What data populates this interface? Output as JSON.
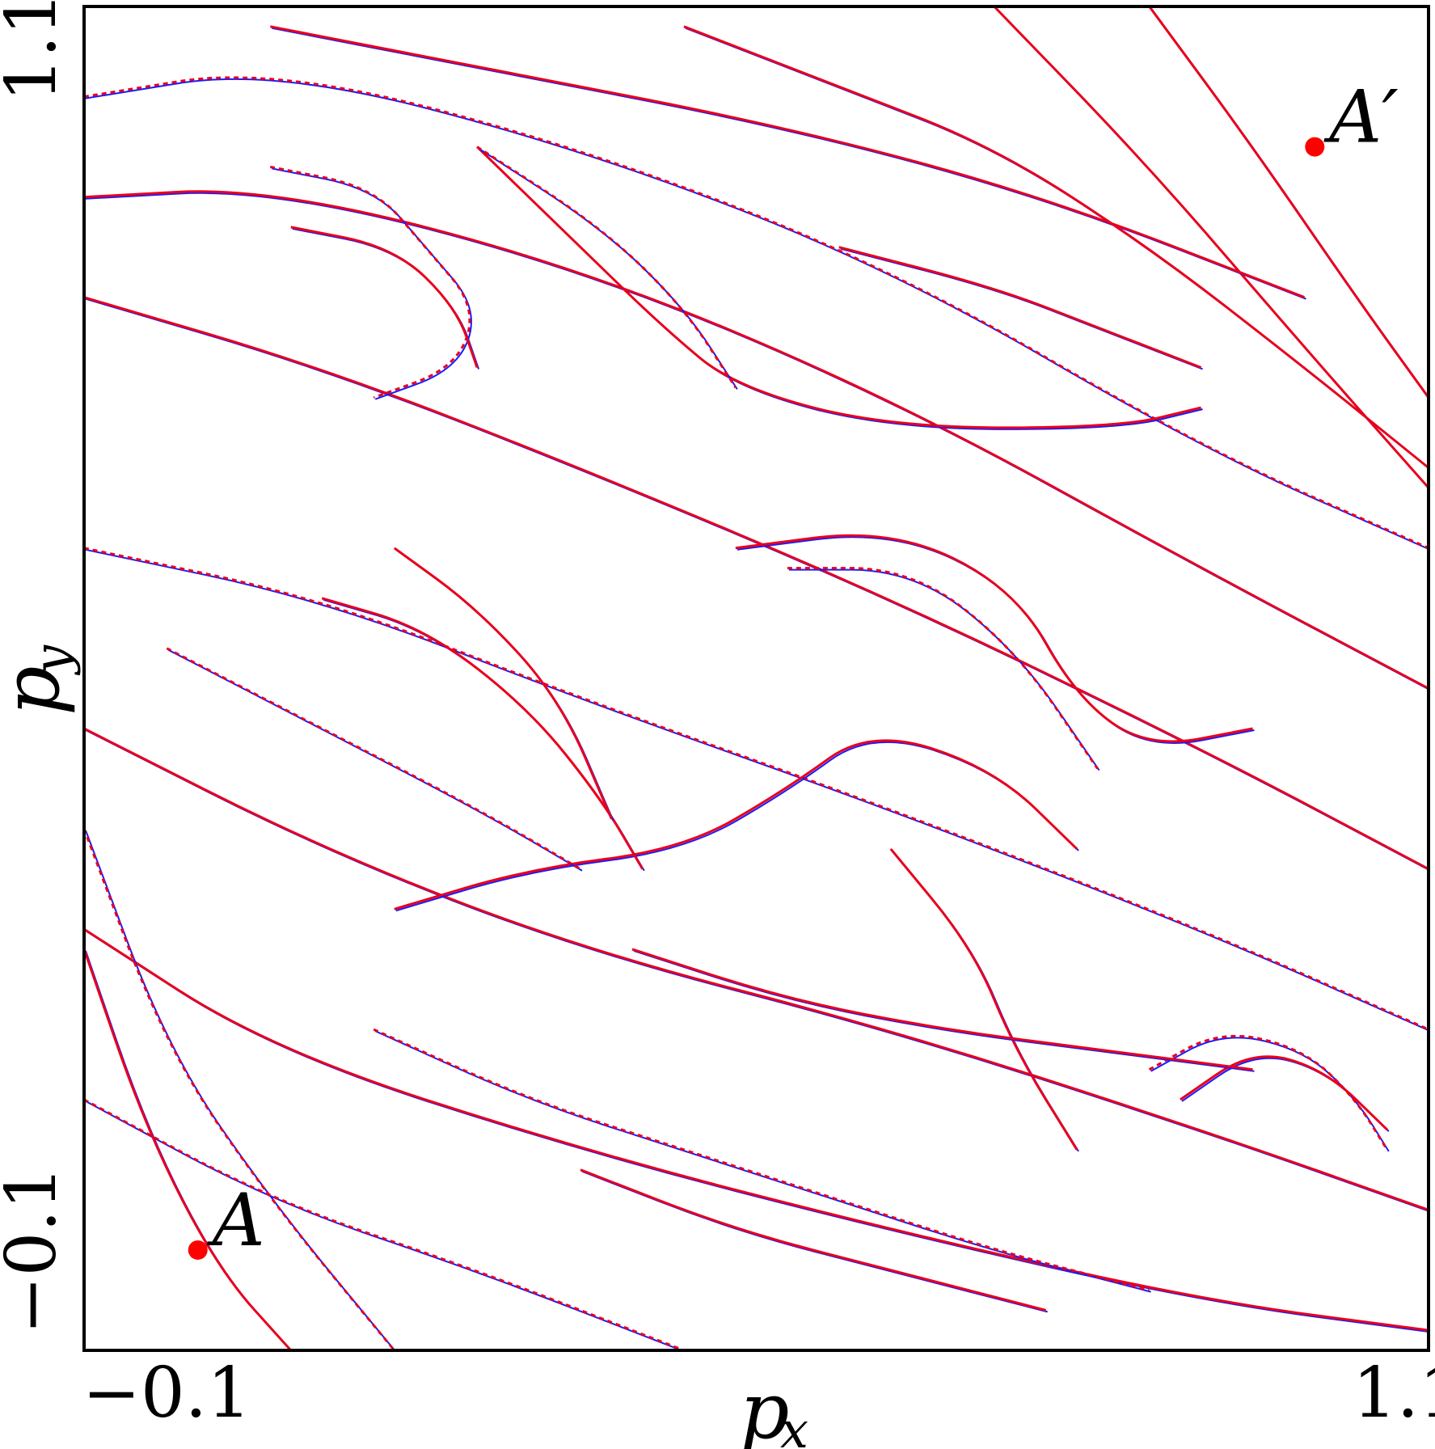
{
  "chart_data": {
    "type": "scatter",
    "title": "",
    "xlabel": {
      "main": "p",
      "sub": "x"
    },
    "ylabel": {
      "main": "p",
      "sub": "y"
    },
    "xlim": [
      -0.18,
      1.12
    ],
    "ylim": [
      -0.2,
      1.14
    ],
    "xticks": [
      {
        "value": -0.1,
        "label": "−0.1"
      },
      {
        "value": 1.1,
        "label": "1.1"
      }
    ],
    "yticks": [
      {
        "value": -0.1,
        "label": "−0.1"
      },
      {
        "value": 1.1,
        "label": "1.1"
      }
    ],
    "grid": false,
    "legend": false,
    "colors": {
      "manifold_primary": "#e8001c",
      "manifold_secondary": "#1a1aff",
      "accent": "#f5a623",
      "point": "#ff0000"
    },
    "marked_points": [
      {
        "name": "A",
        "x": -0.07,
        "y": -0.1
      },
      {
        "name": "A′",
        "x": 1.01,
        "y": 1.0
      }
    ],
    "manifold_curves": [
      [
        [
          -0.18,
          1.05
        ],
        [
          0.0,
          1.08
        ],
        [
          0.3,
          1.0
        ],
        [
          0.6,
          0.88
        ],
        [
          0.9,
          0.7
        ],
        [
          1.12,
          0.6
        ]
      ],
      [
        [
          -0.18,
          0.95
        ],
        [
          0.0,
          0.96
        ],
        [
          0.3,
          0.88
        ],
        [
          0.6,
          0.75
        ],
        [
          0.9,
          0.58
        ],
        [
          1.12,
          0.46
        ]
      ],
      [
        [
          -0.18,
          0.85
        ],
        [
          0.05,
          0.78
        ],
        [
          0.3,
          0.68
        ],
        [
          0.6,
          0.55
        ],
        [
          0.9,
          0.4
        ],
        [
          1.12,
          0.28
        ]
      ],
      [
        [
          -0.18,
          0.6
        ],
        [
          0.05,
          0.55
        ],
        [
          0.3,
          0.45
        ],
        [
          0.6,
          0.34
        ],
        [
          0.9,
          0.22
        ],
        [
          1.12,
          0.12
        ]
      ],
      [
        [
          -0.18,
          0.42
        ],
        [
          0.05,
          0.3
        ],
        [
          0.3,
          0.2
        ],
        [
          0.6,
          0.12
        ],
        [
          0.9,
          0.02
        ],
        [
          1.12,
          -0.06
        ]
      ],
      [
        [
          -0.18,
          0.22
        ],
        [
          0.0,
          0.1
        ],
        [
          0.3,
          0.0
        ],
        [
          0.6,
          -0.08
        ],
        [
          0.9,
          -0.15
        ],
        [
          1.12,
          -0.18
        ]
      ],
      [
        [
          -0.18,
          0.05
        ],
        [
          0.0,
          -0.05
        ],
        [
          0.2,
          -0.12
        ],
        [
          0.4,
          -0.2
        ]
      ],
      [
        [
          0.85,
          1.14
        ],
        [
          0.95,
          1.0
        ],
        [
          1.05,
          0.85
        ],
        [
          1.12,
          0.75
        ]
      ],
      [
        [
          0.7,
          1.14
        ],
        [
          0.85,
          0.98
        ],
        [
          1.0,
          0.8
        ],
        [
          1.12,
          0.66
        ]
      ],
      [
        [
          -0.18,
          0.32
        ],
        [
          -0.1,
          0.1
        ],
        [
          0.0,
          -0.05
        ],
        [
          0.12,
          -0.2
        ]
      ],
      [
        [
          -0.18,
          0.2
        ],
        [
          -0.12,
          0.02
        ],
        [
          -0.05,
          -0.12
        ],
        [
          0.02,
          -0.2
        ]
      ],
      [
        [
          0.2,
          1.0
        ],
        [
          0.3,
          0.9
        ],
        [
          0.38,
          0.82
        ],
        [
          0.45,
          0.76
        ],
        [
          0.6,
          0.72
        ],
        [
          0.82,
          0.72
        ],
        [
          0.9,
          0.74
        ]
      ],
      [
        [
          0.2,
          1.0
        ],
        [
          0.32,
          0.92
        ],
        [
          0.4,
          0.84
        ],
        [
          0.45,
          0.76
        ]
      ],
      [
        [
          0.12,
          0.24
        ],
        [
          0.25,
          0.28
        ],
        [
          0.4,
          0.3
        ],
        [
          0.5,
          0.36
        ],
        [
          0.58,
          0.42
        ],
        [
          0.7,
          0.38
        ],
        [
          0.78,
          0.3
        ]
      ],
      [
        [
          0.78,
          0.0
        ],
        [
          0.72,
          0.1
        ],
        [
          0.68,
          0.2
        ],
        [
          0.6,
          0.3
        ]
      ],
      [
        [
          0.0,
          0.98
        ],
        [
          0.1,
          0.96
        ],
        [
          0.15,
          0.9
        ],
        [
          0.2,
          0.84
        ],
        [
          0.18,
          0.78
        ],
        [
          0.1,
          0.75
        ]
      ],
      [
        [
          0.02,
          0.92
        ],
        [
          0.12,
          0.9
        ],
        [
          0.18,
          0.84
        ],
        [
          0.2,
          0.78
        ]
      ],
      [
        [
          0.45,
          0.6
        ],
        [
          0.6,
          0.62
        ],
        [
          0.72,
          0.56
        ],
        [
          0.78,
          0.45
        ],
        [
          0.85,
          0.4
        ],
        [
          0.95,
          0.42
        ]
      ],
      [
        [
          0.5,
          0.58
        ],
        [
          0.62,
          0.58
        ],
        [
          0.72,
          0.5
        ],
        [
          0.8,
          0.38
        ]
      ],
      [
        [
          0.05,
          0.55
        ],
        [
          0.15,
          0.52
        ],
        [
          0.25,
          0.44
        ],
        [
          0.32,
          0.35
        ],
        [
          0.36,
          0.28
        ]
      ],
      [
        [
          0.12,
          0.6
        ],
        [
          0.2,
          0.54
        ],
        [
          0.28,
          0.45
        ],
        [
          0.33,
          0.33
        ]
      ],
      [
        [
          0.85,
          0.08
        ],
        [
          0.92,
          0.12
        ],
        [
          1.0,
          0.1
        ],
        [
          1.05,
          0.05
        ],
        [
          1.08,
          0.0
        ]
      ],
      [
        [
          0.88,
          0.05
        ],
        [
          0.95,
          0.1
        ],
        [
          1.02,
          0.08
        ],
        [
          1.08,
          0.02
        ]
      ],
      [
        [
          0.35,
          0.2
        ],
        [
          0.5,
          0.15
        ],
        [
          0.65,
          0.12
        ],
        [
          0.8,
          0.1
        ],
        [
          0.95,
          0.08
        ]
      ],
      [
        [
          0.1,
          0.12
        ],
        [
          0.25,
          0.05
        ],
        [
          0.4,
          0.0
        ],
        [
          0.55,
          -0.05
        ],
        [
          0.7,
          -0.1
        ],
        [
          0.85,
          -0.14
        ]
      ],
      [
        [
          0.0,
          1.12
        ],
        [
          0.2,
          1.08
        ],
        [
          0.5,
          1.02
        ],
        [
          0.75,
          0.95
        ],
        [
          1.0,
          0.85
        ]
      ],
      [
        [
          0.4,
          1.12
        ],
        [
          0.55,
          1.06
        ],
        [
          0.7,
          1.0
        ],
        [
          0.85,
          0.9
        ],
        [
          1.0,
          0.78
        ],
        [
          1.12,
          0.68
        ]
      ],
      [
        [
          -0.1,
          0.5
        ],
        [
          0.05,
          0.42
        ],
        [
          0.2,
          0.34
        ],
        [
          0.3,
          0.28
        ]
      ],
      [
        [
          0.55,
          0.9
        ],
        [
          0.7,
          0.86
        ],
        [
          0.8,
          0.82
        ],
        [
          0.9,
          0.78
        ]
      ],
      [
        [
          0.3,
          -0.02
        ],
        [
          0.45,
          -0.08
        ],
        [
          0.6,
          -0.12
        ],
        [
          0.75,
          -0.16
        ]
      ]
    ]
  }
}
